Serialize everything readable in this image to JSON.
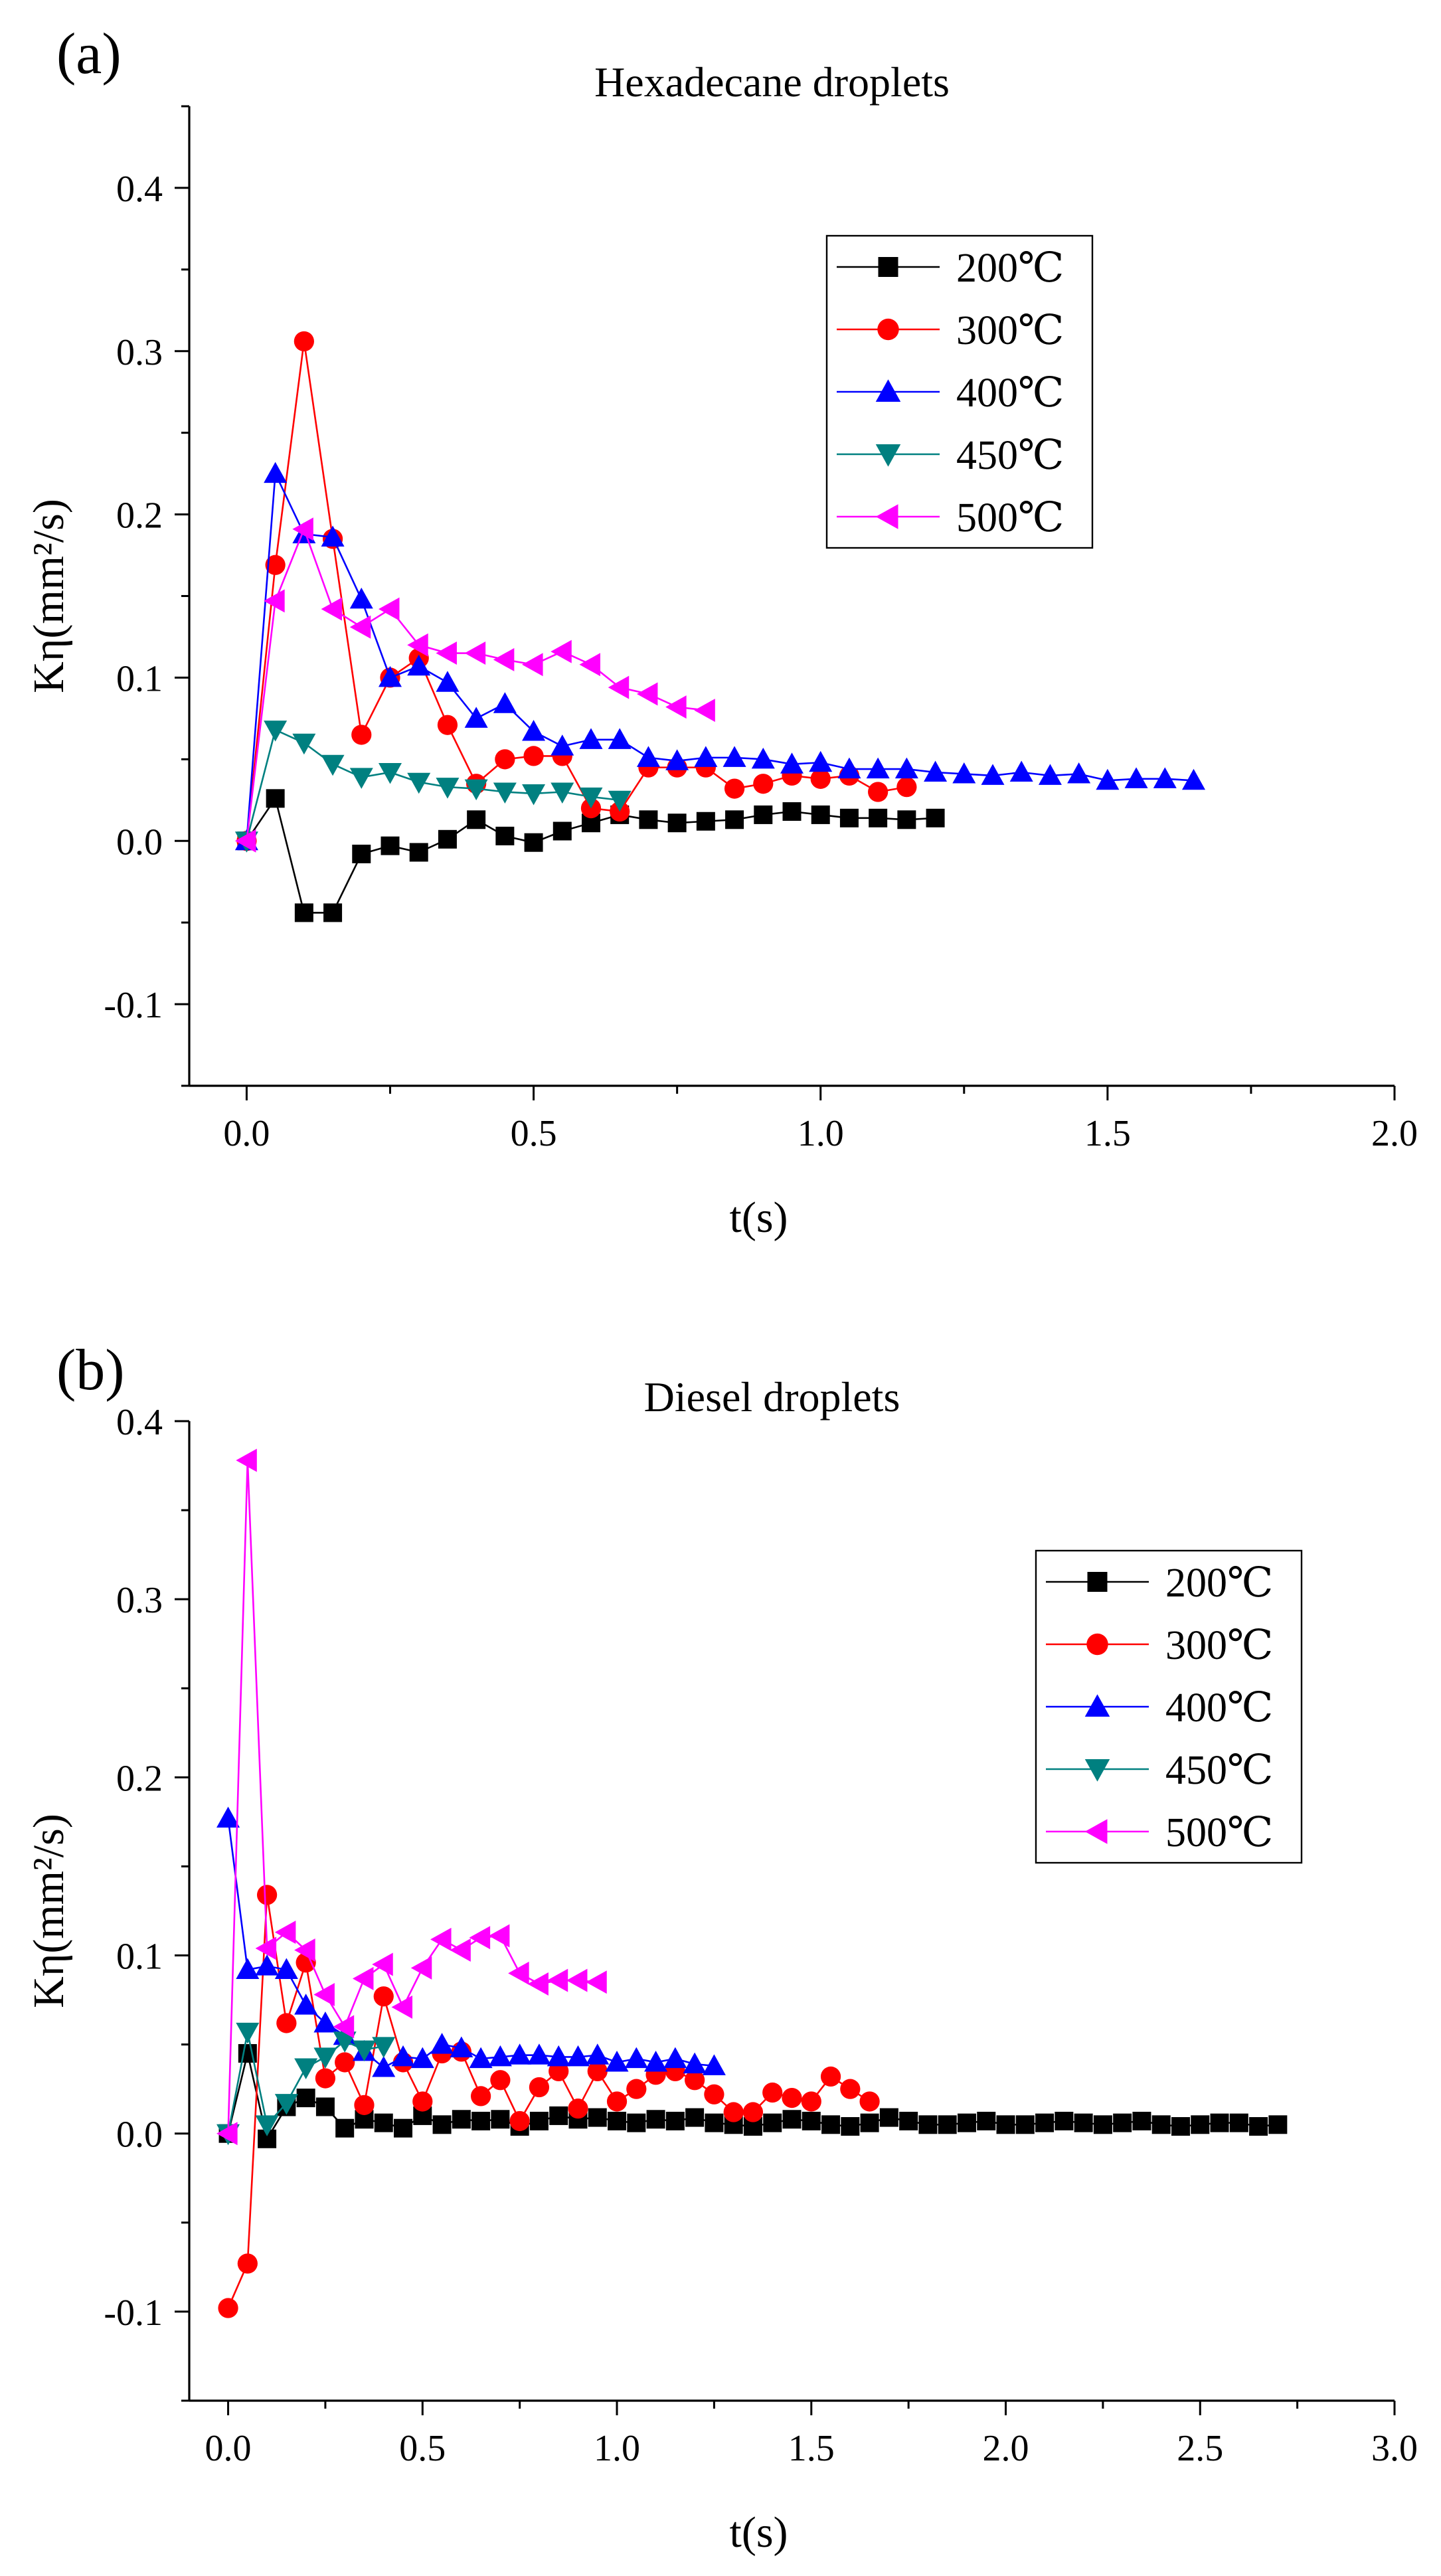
{
  "figure": {
    "panel_a_label": "(a)",
    "panel_b_label": "(b)"
  },
  "chart_data": [
    {
      "type": "line",
      "panel": "(a)",
      "title": "Hexadecane droplets",
      "xlabel": "t(s)",
      "ylabel": "Kη(mm²/s)",
      "xlim": [
        -0.1,
        2.0
      ],
      "ylim": [
        -0.15,
        0.45
      ],
      "xticks": [
        0.0,
        0.5,
        1.0,
        1.5,
        2.0
      ],
      "xtick_labels": [
        "0.0",
        "0.5",
        "1.0",
        "1.5",
        "2.0"
      ],
      "yticks": [
        -0.1,
        0.0,
        0.1,
        0.2,
        0.3,
        0.4
      ],
      "ytick_labels": [
        "-0.1",
        "0.0",
        "0.1",
        "0.2",
        "0.3",
        "0.4"
      ],
      "legend_position": "upper-center",
      "series": [
        {
          "name": "200℃",
          "color": "#000000",
          "marker": "square",
          "x": [
            0,
            0.05,
            0.1,
            0.15,
            0.2,
            0.25,
            0.3,
            0.35,
            0.4,
            0.45,
            0.5,
            0.55,
            0.6,
            0.65,
            0.7,
            0.75,
            0.8,
            0.85,
            0.9,
            0.95,
            1.0,
            1.05,
            1.1,
            1.15,
            1.2
          ],
          "y": [
            0,
            0.026,
            -0.044,
            -0.044,
            -0.008,
            -0.003,
            -0.007,
            0.001,
            0.013,
            0.003,
            -0.001,
            0.006,
            0.011,
            0.016,
            0.013,
            0.011,
            0.012,
            0.013,
            0.016,
            0.018,
            0.016,
            0.014,
            0.014,
            0.013,
            0.014
          ]
        },
        {
          "name": "300℃",
          "color": "#ff0000",
          "marker": "circle",
          "x": [
            0,
            0.05,
            0.1,
            0.15,
            0.2,
            0.25,
            0.3,
            0.35,
            0.4,
            0.45,
            0.5,
            0.55,
            0.6,
            0.65,
            0.7,
            0.75,
            0.8,
            0.85,
            0.9,
            0.95,
            1.0,
            1.05,
            1.1,
            1.15
          ],
          "y": [
            0,
            0.169,
            0.306,
            0.185,
            0.065,
            0.1,
            0.112,
            0.071,
            0.035,
            0.05,
            0.052,
            0.052,
            0.02,
            0.018,
            0.045,
            0.045,
            0.045,
            0.032,
            0.035,
            0.04,
            0.038,
            0.04,
            0.03,
            0.033
          ]
        },
        {
          "name": "400℃",
          "color": "#0000ff",
          "marker": "triangle-up",
          "x": [
            0,
            0.05,
            0.1,
            0.15,
            0.2,
            0.25,
            0.3,
            0.35,
            0.4,
            0.45,
            0.5,
            0.55,
            0.6,
            0.65,
            0.7,
            0.75,
            0.8,
            0.85,
            0.9,
            0.95,
            1.0,
            1.05,
            1.1,
            1.15,
            1.2,
            1.25,
            1.3,
            1.35,
            1.4,
            1.45,
            1.5,
            1.55,
            1.6,
            1.65
          ],
          "y": [
            0,
            0.225,
            0.188,
            0.186,
            0.148,
            0.1,
            0.107,
            0.097,
            0.075,
            0.084,
            0.067,
            0.058,
            0.062,
            0.062,
            0.051,
            0.049,
            0.051,
            0.051,
            0.05,
            0.047,
            0.048,
            0.044,
            0.044,
            0.044,
            0.042,
            0.041,
            0.04,
            0.042,
            0.04,
            0.041,
            0.037,
            0.038,
            0.038,
            0.037
          ]
        },
        {
          "name": "450℃",
          "color": "#008080",
          "marker": "triangle-down",
          "x": [
            0,
            0.05,
            0.1,
            0.15,
            0.2,
            0.25,
            0.3,
            0.35,
            0.4,
            0.45,
            0.5,
            0.55,
            0.6,
            0.65
          ],
          "y": [
            0,
            0.068,
            0.06,
            0.047,
            0.039,
            0.042,
            0.036,
            0.033,
            0.032,
            0.03,
            0.029,
            0.03,
            0.027,
            0.025
          ]
        },
        {
          "name": "500℃",
          "color": "#ff00ff",
          "marker": "triangle-left",
          "x": [
            0,
            0.05,
            0.1,
            0.15,
            0.2,
            0.25,
            0.3,
            0.35,
            0.4,
            0.45,
            0.5,
            0.55,
            0.6,
            0.65,
            0.7,
            0.75,
            0.8
          ],
          "y": [
            0,
            0.147,
            0.191,
            0.142,
            0.131,
            0.142,
            0.12,
            0.115,
            0.115,
            0.111,
            0.108,
            0.116,
            0.108,
            0.094,
            0.09,
            0.082,
            0.08
          ]
        }
      ]
    },
    {
      "type": "line",
      "panel": "(b)",
      "title": "Diesel droplets",
      "xlabel": "t(s)",
      "ylabel": "Kη(mm²/s)",
      "xlim": [
        -0.1,
        3.0
      ],
      "ylim": [
        -0.15,
        0.4
      ],
      "xticks": [
        0.0,
        0.5,
        1.0,
        1.5,
        2.0,
        2.5,
        3.0
      ],
      "xtick_labels": [
        "0.0",
        "0.5",
        "1.0",
        "1.5",
        "2.0",
        "2.5",
        "3.0"
      ],
      "yticks": [
        -0.1,
        0.0,
        0.1,
        0.2,
        0.3,
        0.4
      ],
      "ytick_labels": [
        "-0.1",
        "0.0",
        "0.1",
        "0.2",
        "0.3",
        "0.4"
      ],
      "legend_position": "right",
      "series": [
        {
          "name": "200℃",
          "color": "#000000",
          "marker": "square",
          "x": [
            0,
            0.05,
            0.1,
            0.15,
            0.2,
            0.25,
            0.3,
            0.35,
            0.4,
            0.45,
            0.5,
            0.55,
            0.6,
            0.65,
            0.7,
            0.75,
            0.8,
            0.85,
            0.9,
            0.95,
            1.0,
            1.05,
            1.1,
            1.15,
            1.2,
            1.25,
            1.3,
            1.35,
            1.4,
            1.45,
            1.5,
            1.55,
            1.6,
            1.65,
            1.7,
            1.75,
            1.8,
            1.85,
            1.9,
            1.95,
            2.0,
            2.05,
            2.1,
            2.15,
            2.2,
            2.25,
            2.3,
            2.35,
            2.4,
            2.45,
            2.5,
            2.55,
            2.6,
            2.65,
            2.7
          ],
          "y": [
            0,
            0.045,
            -0.003,
            0.015,
            0.02,
            0.015,
            0.003,
            0.008,
            0.006,
            0.003,
            0.01,
            0.005,
            0.008,
            0.007,
            0.008,
            0.004,
            0.007,
            0.01,
            0.008,
            0.009,
            0.007,
            0.006,
            0.008,
            0.007,
            0.009,
            0.006,
            0.005,
            0.004,
            0.006,
            0.008,
            0.007,
            0.005,
            0.004,
            0.006,
            0.009,
            0.007,
            0.005,
            0.005,
            0.006,
            0.007,
            0.005,
            0.005,
            0.006,
            0.007,
            0.006,
            0.005,
            0.006,
            0.007,
            0.005,
            0.004,
            0.005,
            0.006,
            0.006,
            0.004,
            0.005
          ]
        },
        {
          "name": "300℃",
          "color": "#ff0000",
          "marker": "circle",
          "x": [
            0,
            0.05,
            0.1,
            0.15,
            0.2,
            0.25,
            0.3,
            0.35,
            0.4,
            0.45,
            0.5,
            0.55,
            0.6,
            0.65,
            0.7,
            0.75,
            0.8,
            0.85,
            0.9,
            0.95,
            1.0,
            1.05,
            1.1,
            1.15,
            1.2,
            1.25,
            1.3,
            1.35,
            1.4,
            1.45,
            1.5,
            1.55,
            1.6,
            1.65
          ],
          "y": [
            -0.098,
            -0.073,
            0.134,
            0.062,
            0.096,
            0.031,
            0.04,
            0.016,
            0.077,
            0.04,
            0.018,
            0.045,
            0.046,
            0.021,
            0.03,
            0.007,
            0.026,
            0.035,
            0.014,
            0.035,
            0.018,
            0.025,
            0.033,
            0.035,
            0.03,
            0.022,
            0.012,
            0.012,
            0.023,
            0.02,
            0.018,
            0.032,
            0.025,
            0.018
          ]
        },
        {
          "name": "400℃",
          "color": "#0000ff",
          "marker": "triangle-up",
          "x": [
            0,
            0.05,
            0.1,
            0.15,
            0.2,
            0.25,
            0.3,
            0.35,
            0.4,
            0.45,
            0.5,
            0.55,
            0.6,
            0.65,
            0.7,
            0.75,
            0.8,
            0.85,
            0.9,
            0.95,
            1.0,
            1.05,
            1.1,
            1.15,
            1.2,
            1.25
          ],
          "y": [
            0.177,
            0.092,
            0.094,
            0.092,
            0.072,
            0.062,
            0.055,
            0.046,
            0.037,
            0.043,
            0.042,
            0.05,
            0.048,
            0.042,
            0.043,
            0.044,
            0.044,
            0.043,
            0.043,
            0.044,
            0.04,
            0.042,
            0.04,
            0.042,
            0.039,
            0.038
          ]
        },
        {
          "name": "450℃",
          "color": "#008080",
          "marker": "triangle-down",
          "x": [
            0,
            0.05,
            0.1,
            0.15,
            0.2,
            0.25,
            0.3,
            0.35,
            0.4
          ],
          "y": [
            0,
            0.057,
            0.005,
            0.017,
            0.037,
            0.043,
            0.052,
            0.047,
            0.049
          ]
        },
        {
          "name": "500℃",
          "color": "#ff00ff",
          "marker": "triangle-left",
          "x": [
            0,
            0.05,
            0.1,
            0.15,
            0.2,
            0.25,
            0.3,
            0.35,
            0.4,
            0.45,
            0.5,
            0.55,
            0.6,
            0.65,
            0.7,
            0.75,
            0.8,
            0.85,
            0.9,
            0.95
          ],
          "y": [
            0,
            0.378,
            0.104,
            0.113,
            0.103,
            0.078,
            0.06,
            0.087,
            0.095,
            0.071,
            0.093,
            0.109,
            0.103,
            0.11,
            0.111,
            0.09,
            0.084,
            0.086,
            0.086,
            0.085
          ]
        }
      ]
    }
  ]
}
